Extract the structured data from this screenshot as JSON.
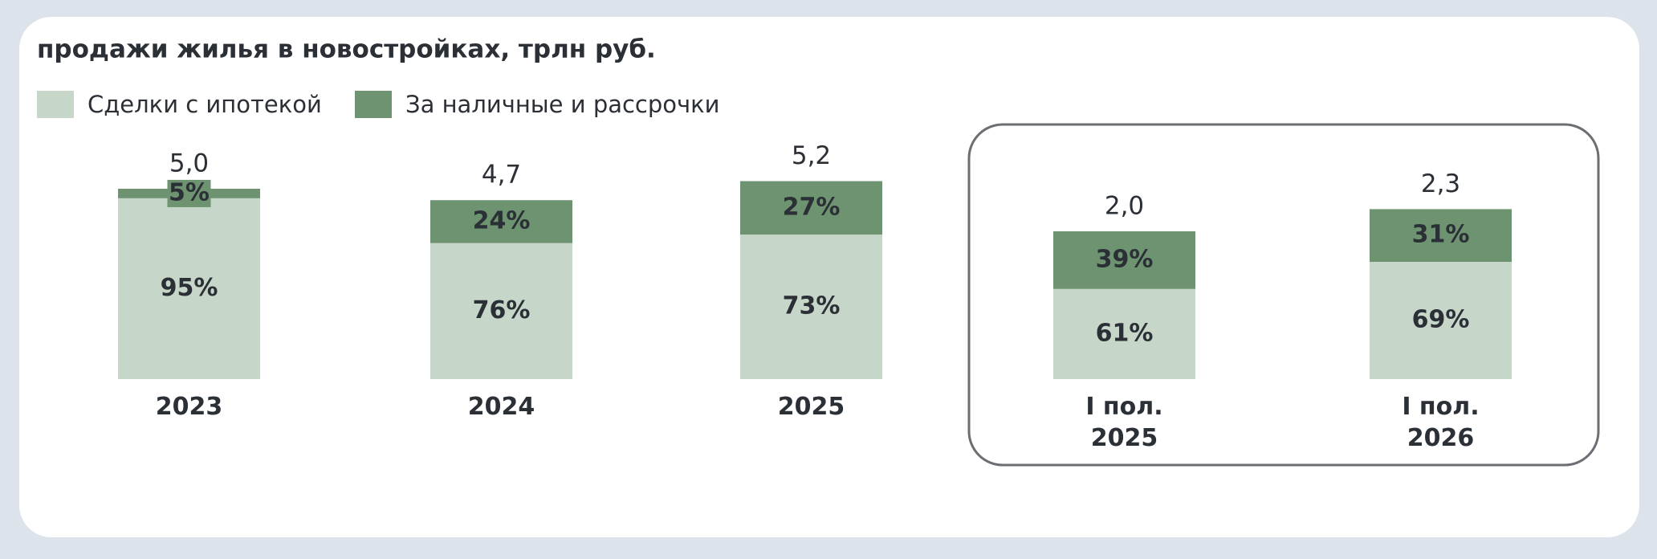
{
  "chart_data": {
    "type": "stacked_bar",
    "title": "продажи жилья в новостройках, трлн руб.",
    "categories": [
      "2023",
      "2024",
      "2025",
      "I пол.\n2025",
      "I пол.\n2026"
    ],
    "series": [
      {
        "name": "Сделки с ипотекой",
        "color": "#c6d6c8",
        "values": [
          95,
          76,
          73,
          61,
          69
        ],
        "value_labels": [
          "95%",
          "76%",
          "73%",
          "61%",
          "69%"
        ]
      },
      {
        "name": "За наличные и рассрочки",
        "color": "#6e9370",
        "values": [
          5,
          24,
          27,
          39,
          31
        ],
        "value_labels": [
          "5%",
          "24%",
          "27%",
          "39%",
          "31%"
        ]
      }
    ],
    "totals": {
      "values": [
        5.0,
        4.7,
        5.2,
        2.0,
        2.3
      ],
      "value_labels": [
        "5,0",
        "4,7",
        "5,2",
        "2,0",
        "2,3"
      ]
    },
    "legend": "top-left"
  }
}
